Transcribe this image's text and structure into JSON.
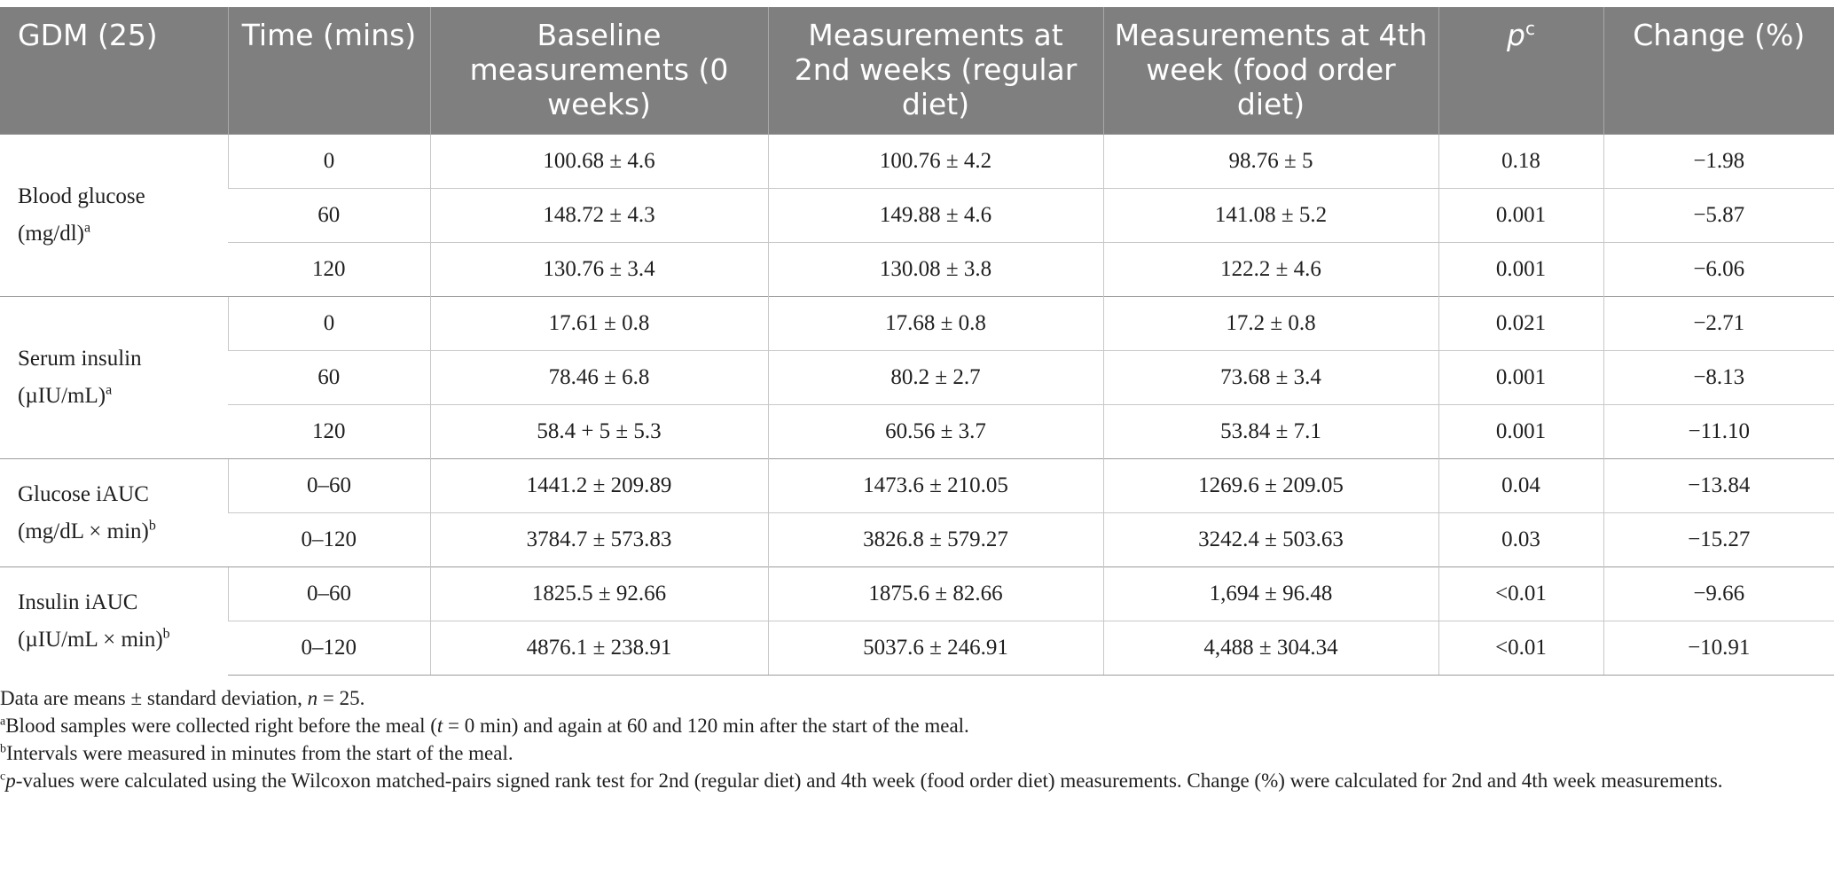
{
  "table": {
    "headers": {
      "group": "GDM (25)",
      "time": "Time (mins)",
      "baseline": "Baseline measurements (0 weeks)",
      "week2": "Measurements at 2nd weeks (regular diet)",
      "week4": "Measurements at 4th week (food order diet)",
      "p_letter": "p",
      "p_sup": "c",
      "change": "Change (%)"
    },
    "groups": [
      {
        "label_line1": "Blood glucose",
        "label_line2": "(mg/dl)",
        "sup": "a",
        "rows": [
          {
            "time": "0",
            "baseline": "100.68 ± 4.6",
            "week2": "100.76 ± 4.2",
            "week4": "98.76 ± 5",
            "p": "0.18",
            "change": "−1.98"
          },
          {
            "time": "60",
            "baseline": "148.72 ± 4.3",
            "week2": "149.88 ± 4.6",
            "week4": "141.08 ± 5.2",
            "p": "0.001",
            "change": "−5.87"
          },
          {
            "time": "120",
            "baseline": "130.76 ± 3.4",
            "week2": "130.08 ± 3.8",
            "week4": "122.2 ± 4.6",
            "p": "0.001",
            "change": "−6.06"
          }
        ]
      },
      {
        "label_line1": "Serum insulin",
        "label_line2": "(µIU/mL)",
        "sup": "a",
        "rows": [
          {
            "time": "0",
            "baseline": "17.61 ± 0.8",
            "week2": "17.68 ± 0.8",
            "week4": "17.2 ± 0.8",
            "p": "0.021",
            "change": "−2.71"
          },
          {
            "time": "60",
            "baseline": "78.46 ± 6.8",
            "week2": "80.2 ± 2.7",
            "week4": "73.68 ± 3.4",
            "p": "0.001",
            "change": "−8.13"
          },
          {
            "time": "120",
            "baseline": "58.4 + 5 ± 5.3",
            "week2": "60.56 ± 3.7",
            "week4": "53.84 ± 7.1",
            "p": "0.001",
            "change": "−11.10"
          }
        ]
      },
      {
        "label_line1": "Glucose iAUC",
        "label_line2": "(mg/dL × min)",
        "sup": "b",
        "rows": [
          {
            "time": "0–60",
            "baseline": "1441.2 ± 209.89",
            "week2": "1473.6 ± 210.05",
            "week4": "1269.6 ± 209.05",
            "p": "0.04",
            "change": "−13.84"
          },
          {
            "time": "0–120",
            "baseline": "3784.7 ± 573.83",
            "week2": "3826.8 ± 579.27",
            "week4": "3242.4 ± 503.63",
            "p": "0.03",
            "change": "−15.27"
          }
        ]
      },
      {
        "label_line1": "Insulin iAUC",
        "label_line2": "(µIU/mL × min)",
        "sup": "b",
        "rows": [
          {
            "time": "0–60",
            "baseline": "1825.5 ± 92.66",
            "week2": "1875.6 ± 82.66",
            "week4": "1,694 ± 96.48",
            "p": "<0.01",
            "change": "−9.66"
          },
          {
            "time": "0–120",
            "baseline": "4876.1 ± 238.91",
            "week2": "5037.6 ± 246.91",
            "week4": "4,488 ± 304.34",
            "p": "<0.01",
            "change": "−10.91"
          }
        ]
      }
    ]
  },
  "footnotes": {
    "data_note_prefix": "Data are means ± standard deviation, ",
    "data_note_n": "n",
    "data_note_suffix": " = 25.",
    "a_sup": "a",
    "a_prefix": "Blood samples were collected right before the meal (",
    "a_t": "t",
    "a_suffix": " = 0 min) and again at 60 and 120 min after the start of the meal.",
    "b_sup": "b",
    "b_text": "Intervals were measured in minutes from the start of the meal.",
    "c_sup": "c",
    "c_p": "p",
    "c_text": "-values were calculated using the Wilcoxon matched-pairs signed rank test for 2nd (regular diet) and 4th week (food order diet) measurements. Change (%) were calculated for 2nd and 4th week measurements."
  }
}
